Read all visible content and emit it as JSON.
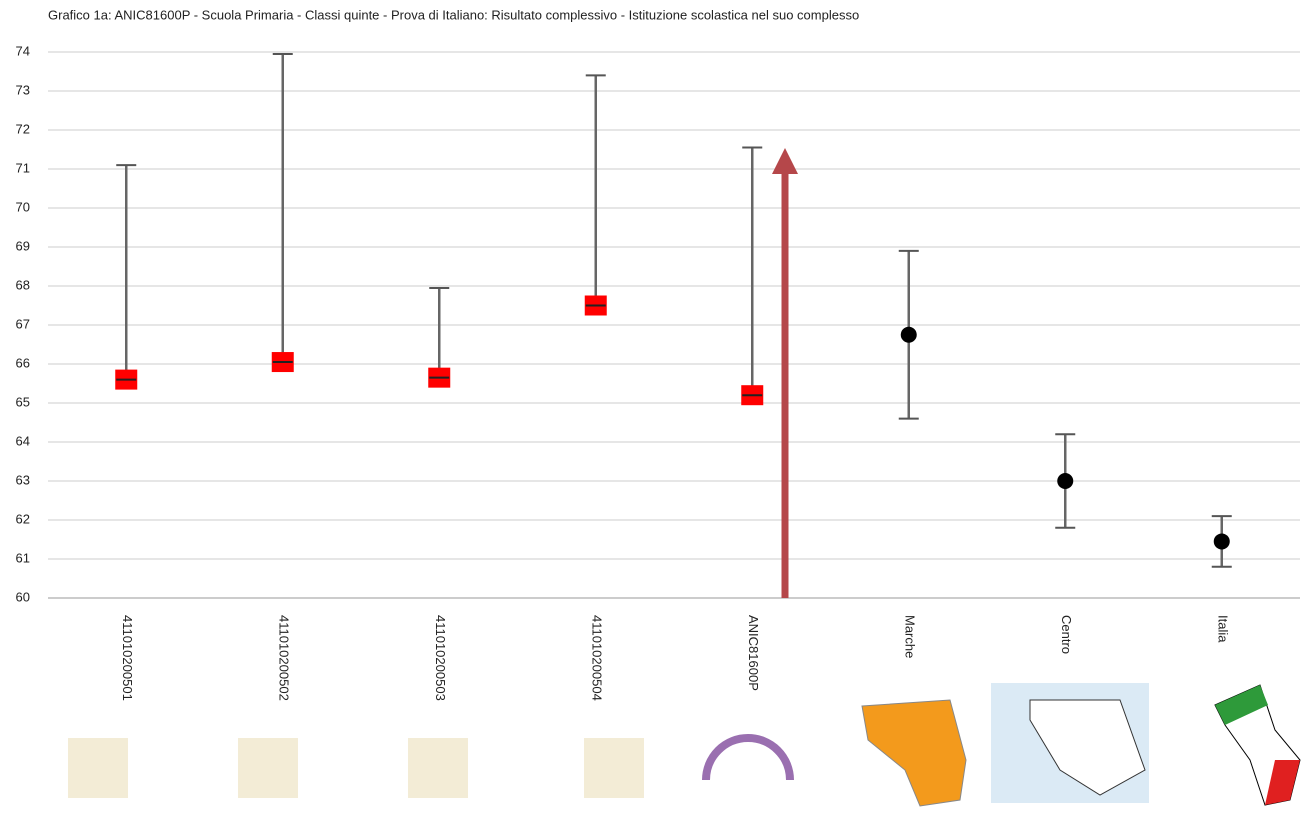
{
  "chart_data": {
    "type": "errorbar",
    "title": "Grafico 1a: ANIC81600P - Scuola Primaria - Classi quinte - Prova di Italiano: Risultato complessivo - Istituzione scolastica nel suo complesso",
    "categories": [
      "411010200501",
      "411010200502",
      "411010200503",
      "411010200504",
      "ANIC81600P",
      "Marche",
      "Centro",
      "Italia"
    ],
    "values": [
      65.6,
      66.05,
      65.65,
      67.5,
      65.2,
      66.75,
      63.0,
      61.45
    ],
    "upper": [
      71.1,
      73.95,
      67.95,
      73.4,
      71.55,
      68.9,
      64.2,
      62.1
    ],
    "lower": [
      65.6,
      66.05,
      65.65,
      67.5,
      65.2,
      64.6,
      61.8,
      60.8
    ],
    "markers": [
      "square",
      "square",
      "square",
      "square",
      "square",
      "circle",
      "circle",
      "circle"
    ],
    "marker_colors": [
      "#ff0000",
      "#ff0000",
      "#ff0000",
      "#ff0000",
      "#ff0000",
      "#000000",
      "#000000",
      "#000000"
    ],
    "ylim": [
      60,
      74
    ],
    "yticks": [
      60,
      61,
      62,
      63,
      64,
      65,
      66,
      67,
      68,
      69,
      70,
      71,
      72,
      73,
      74
    ],
    "grid": true
  }
}
